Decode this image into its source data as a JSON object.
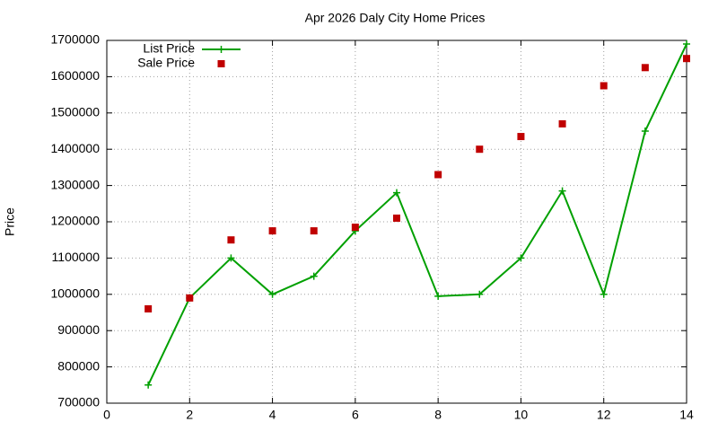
{
  "chart_data": {
    "type": "line",
    "title": "Apr 2026 Daly City Home Prices",
    "y_label": "Price",
    "x": [
      1,
      2,
      3,
      4,
      5,
      6,
      7,
      8,
      9,
      10,
      11,
      12,
      13,
      14
    ],
    "series": [
      {
        "name": "List Price",
        "color": "#00a000",
        "style": "linespoints",
        "values": [
          750000,
          990000,
          1100000,
          1000000,
          1050000,
          1175000,
          1280000,
          995000,
          1000000,
          1100000,
          1285000,
          1000000,
          1450000,
          1690000
        ]
      },
      {
        "name": "Sale Price",
        "color": "#c00000",
        "style": "points",
        "values": [
          960000,
          990000,
          1150000,
          1175000,
          1175000,
          1185000,
          1210000,
          1330000,
          1400000,
          1435000,
          1470000,
          1575000,
          1625000,
          1650000
        ]
      }
    ],
    "xlim": [
      0,
      14
    ],
    "xticks": [
      0,
      2,
      4,
      6,
      8,
      10,
      12,
      14
    ],
    "ylim": [
      700000,
      1700000
    ],
    "yticks": [
      700000,
      800000,
      900000,
      1000000,
      1100000,
      1200000,
      1300000,
      1400000,
      1500000,
      1600000,
      1700000
    ],
    "grid": true,
    "legend": "top-left"
  }
}
